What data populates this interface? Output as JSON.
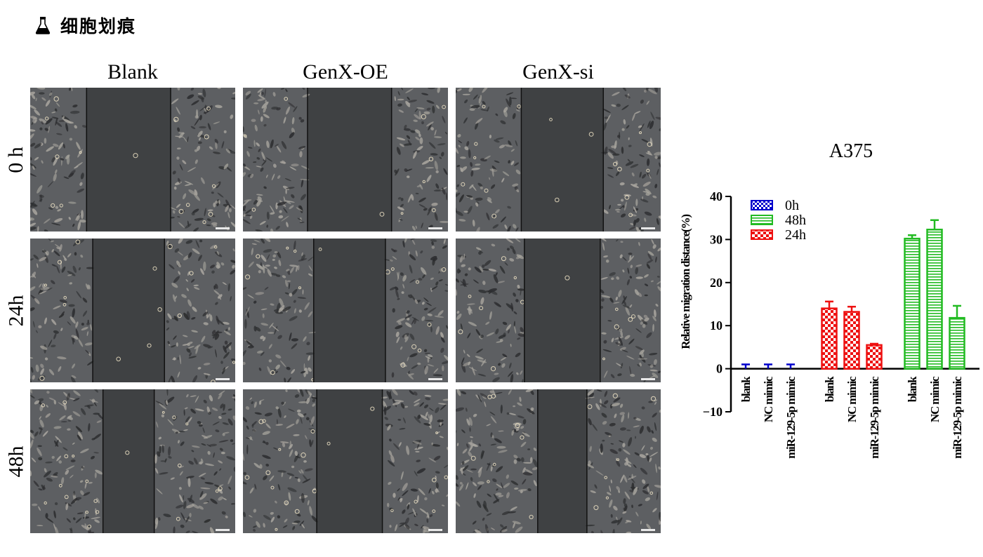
{
  "header": {
    "icon": "flask-icon",
    "title": "细胞划痕"
  },
  "figure": {
    "columns": [
      "Blank",
      "GenX-OE",
      "GenX-si"
    ],
    "rows": [
      "0 h",
      "24h",
      "48h"
    ],
    "panels": [
      [
        {
          "gap_fraction": 0.41
        },
        {
          "gap_fraction": 0.41
        },
        {
          "gap_fraction": 0.4
        }
      ],
      [
        {
          "gap_fraction": 0.35
        },
        {
          "gap_fraction": 0.35
        },
        {
          "gap_fraction": 0.37
        }
      ],
      [
        {
          "gap_fraction": 0.25
        },
        {
          "gap_fraction": 0.32
        },
        {
          "gap_fraction": 0.24
        }
      ]
    ]
  },
  "chart_data": {
    "type": "bar",
    "title": "A375",
    "ylabel": "Relative migration distance(%)",
    "xlabel": "",
    "ylim": [
      -10,
      40
    ],
    "yticks": [
      -10,
      0,
      10,
      20,
      30,
      40
    ],
    "legend_position": "top-left",
    "categories": [
      "blank",
      "NC mimic",
      "miR-129-5p mimic"
    ],
    "series": [
      {
        "name": "0h",
        "color": "#0000cc",
        "pattern": "checker",
        "values": [
          0,
          0,
          0
        ],
        "errors": [
          1.0,
          1.0,
          1.0
        ]
      },
      {
        "name": "48h",
        "color": "#22bb22",
        "pattern": "hlines",
        "values": [
          30.2,
          32.3,
          11.8
        ],
        "errors": [
          0.8,
          2.2,
          2.8
        ]
      },
      {
        "name": "24h",
        "color": "#ee1111",
        "pattern": "checker",
        "values": [
          14.0,
          13.2,
          5.5
        ],
        "errors": [
          1.6,
          1.2,
          0.3
        ]
      }
    ],
    "group_order": [
      "0h",
      "24h",
      "48h"
    ]
  }
}
